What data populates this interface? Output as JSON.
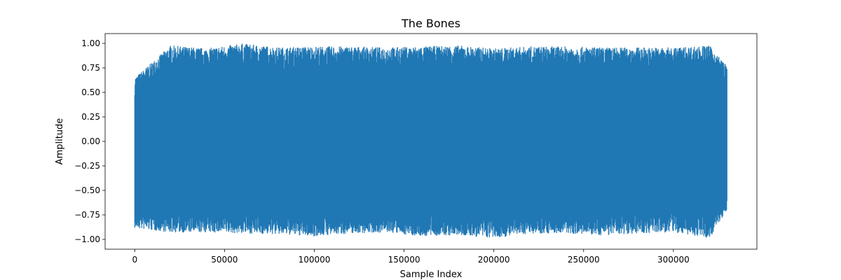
{
  "chart_data": {
    "type": "line",
    "title": "The Bones",
    "xlabel": "Sample Index",
    "ylabel": "Amplitude",
    "xlim": [
      -16500,
      346500
    ],
    "ylim": [
      -1.1,
      1.1
    ],
    "x_ticks": [
      0,
      50000,
      100000,
      150000,
      200000,
      250000,
      300000
    ],
    "x_tick_labels": [
      "0",
      "50000",
      "100000",
      "150000",
      "200000",
      "250000",
      "300000"
    ],
    "y_ticks": [
      1.0,
      0.75,
      0.5,
      0.25,
      0.0,
      -0.25,
      -0.5,
      -0.75,
      -1.0
    ],
    "y_tick_labels": [
      "1.00",
      "0.75",
      "0.50",
      "0.25",
      "0.00",
      "−0.25",
      "−0.50",
      "−0.75",
      "−1.00"
    ],
    "grid": false,
    "series": [
      {
        "color": "#1f77b4",
        "sample_count": 330000,
        "envelope": {
          "x": [
            0,
            20000,
            40000,
            60000,
            80000,
            100000,
            120000,
            140000,
            160000,
            180000,
            200000,
            220000,
            240000,
            260000,
            280000,
            300000,
            320000,
            330000
          ],
          "max": [
            0.65,
            0.98,
            0.95,
            1.0,
            0.96,
            0.97,
            0.97,
            0.96,
            0.97,
            0.98,
            0.95,
            0.97,
            0.97,
            0.96,
            0.96,
            0.96,
            0.98,
            0.77
          ],
          "min": [
            -0.89,
            -0.93,
            -0.93,
            -0.94,
            -0.95,
            -0.97,
            -0.94,
            -0.93,
            -0.97,
            -0.96,
            -0.99,
            -0.94,
            -0.94,
            -0.96,
            -0.94,
            -0.93,
            -0.99,
            -0.7
          ]
        }
      }
    ]
  }
}
